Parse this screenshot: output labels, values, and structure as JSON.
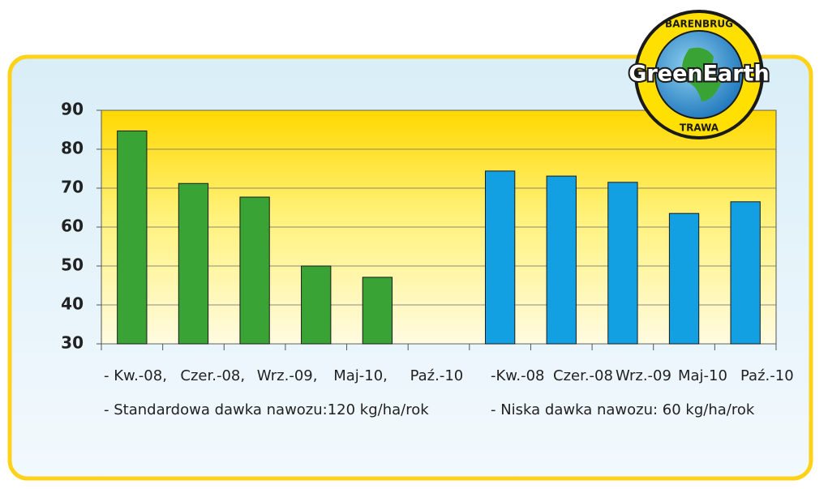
{
  "logo": {
    "top": "BARENBRUG",
    "name": "GreenEarth",
    "bottom": "TRAWA"
  },
  "chart_data": {
    "type": "bar",
    "ylim": [
      30,
      90
    ],
    "yticks": [
      30,
      40,
      50,
      60,
      70,
      80,
      90
    ],
    "grid": true,
    "series": [
      {
        "name": "- Standardowa dawka nawozu:120 kg/ha/rok",
        "color": "#3aa335",
        "categories": [
          "- Kw.-08,",
          "Czer.-08,",
          "Wrz.-09,",
          "Maj-10,",
          "Paź.-10"
        ],
        "values": [
          84.7,
          71.2,
          67.7,
          50,
          47.1
        ]
      },
      {
        "name": "- Niska dawka nawozu: 60 kg/ha/rok",
        "color": "#12a0e2",
        "categories": [
          "-Kw.-08",
          "Czer.-08",
          "Wrz.-09",
          "Maj-10",
          "Paź.-10"
        ],
        "values": [
          74.4,
          73.1,
          71.5,
          63.5,
          66.5
        ]
      }
    ]
  }
}
